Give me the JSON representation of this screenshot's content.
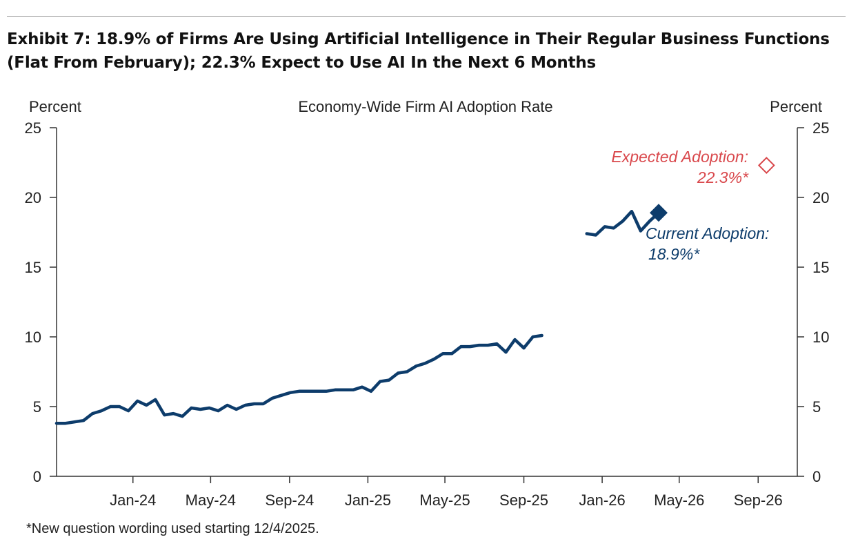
{
  "header": {
    "title_line1": "Exhibit 7: 18.9% of Firms Are Using Artificial Intelligence in Their Regular Business Functions",
    "title_line2": "(Flat From February); 22.3% Expect to Use AI In the Next 6 Months"
  },
  "chart_data": {
    "type": "line",
    "title": "Economy-Wide Firm AI Adoption Rate",
    "ylabel_left": "Percent",
    "ylabel_right": "Percent",
    "ylim": [
      0,
      25
    ],
    "yticks": [
      "0",
      "5",
      "10",
      "15",
      "20",
      "25"
    ],
    "xlim": [
      "2023-09-04",
      "2026-11-01"
    ],
    "xticks": [
      {
        "label": "Jan-24",
        "date": "2024-01-01"
      },
      {
        "label": "May-24",
        "date": "2024-05-01"
      },
      {
        "label": "Sep-24",
        "date": "2024-09-01"
      },
      {
        "label": "Jan-25",
        "date": "2025-01-01"
      },
      {
        "label": "May-25",
        "date": "2025-05-01"
      },
      {
        "label": "Sep-25",
        "date": "2025-09-01"
      },
      {
        "label": "Jan-26",
        "date": "2026-01-01"
      },
      {
        "label": "May-26",
        "date": "2026-05-01"
      },
      {
        "label": "Sep-26",
        "date": "2026-09-01"
      }
    ],
    "grid": false,
    "colors": {
      "current": "#0d3c6b",
      "expected": "#d9484c",
      "axis": "#333333"
    },
    "series": [
      {
        "values": [
          [
            "2023-09-04",
            3.8
          ],
          [
            "2023-09-18",
            3.8
          ],
          [
            "2023-10-02",
            3.9
          ],
          [
            "2023-10-16",
            4.0
          ],
          [
            "2023-10-30",
            4.5
          ],
          [
            "2023-11-13",
            4.7
          ],
          [
            "2023-11-27",
            5.0
          ],
          [
            "2023-12-11",
            5.0
          ],
          [
            "2023-12-25",
            4.7
          ],
          [
            "2024-01-08",
            5.4
          ],
          [
            "2024-01-22",
            5.1
          ],
          [
            "2024-02-05",
            5.5
          ],
          [
            "2024-02-19",
            4.4
          ],
          [
            "2024-03-04",
            4.5
          ],
          [
            "2024-03-18",
            4.3
          ],
          [
            "2024-04-01",
            4.9
          ],
          [
            "2024-04-15",
            4.8
          ],
          [
            "2024-04-29",
            4.9
          ],
          [
            "2024-05-13",
            4.7
          ],
          [
            "2024-05-27",
            5.1
          ],
          [
            "2024-06-10",
            4.8
          ],
          [
            "2024-06-24",
            5.1
          ],
          [
            "2024-07-08",
            5.2
          ],
          [
            "2024-07-22",
            5.2
          ],
          [
            "2024-08-05",
            5.6
          ],
          [
            "2024-08-19",
            5.8
          ],
          [
            "2024-09-02",
            6.0
          ],
          [
            "2024-09-16",
            6.1
          ],
          [
            "2024-09-30",
            6.1
          ],
          [
            "2024-10-14",
            6.1
          ],
          [
            "2024-10-28",
            6.1
          ],
          [
            "2024-11-11",
            6.2
          ],
          [
            "2024-11-25",
            6.2
          ],
          [
            "2024-12-09",
            6.2
          ],
          [
            "2024-12-23",
            6.4
          ],
          [
            "2025-01-06",
            6.1
          ],
          [
            "2025-01-20",
            6.8
          ],
          [
            "2025-02-03",
            6.9
          ],
          [
            "2025-02-17",
            7.4
          ],
          [
            "2025-03-03",
            7.5
          ],
          [
            "2025-03-17",
            7.9
          ],
          [
            "2025-03-31",
            8.1
          ],
          [
            "2025-04-14",
            8.4
          ],
          [
            "2025-04-28",
            8.8
          ],
          [
            "2025-05-12",
            8.8
          ],
          [
            "2025-05-26",
            9.3
          ],
          [
            "2025-06-09",
            9.3
          ],
          [
            "2025-06-23",
            9.4
          ],
          [
            "2025-07-07",
            9.4
          ],
          [
            "2025-07-21",
            9.5
          ],
          [
            "2025-08-04",
            8.9
          ],
          [
            "2025-08-18",
            9.8
          ],
          [
            "2025-09-01",
            9.2
          ],
          [
            "2025-09-15",
            10.0
          ],
          [
            "2025-09-29",
            10.1
          ]
        ]
      },
      {
        "values": [
          [
            "2025-12-08",
            17.4
          ],
          [
            "2025-12-22",
            17.3
          ],
          [
            "2026-01-05",
            17.9
          ],
          [
            "2026-01-19",
            17.8
          ],
          [
            "2026-02-02",
            18.3
          ],
          [
            "2026-02-16",
            19.0
          ],
          [
            "2026-03-02",
            17.6
          ],
          [
            "2026-03-16",
            18.3
          ],
          [
            "2026-03-30",
            18.9
          ]
        ]
      }
    ],
    "current_marker": {
      "date": "2026-03-30",
      "value": 18.9
    },
    "expected_marker": {
      "date": "2026-09-14",
      "value": 22.3
    },
    "annotations": {
      "expected_line1": "Expected Adoption:",
      "expected_line2": "22.3%*",
      "current_line1": "Current Adoption:",
      "current_line2": "18.9%*"
    }
  },
  "footnote": "*New question wording used starting 12/4/2025."
}
